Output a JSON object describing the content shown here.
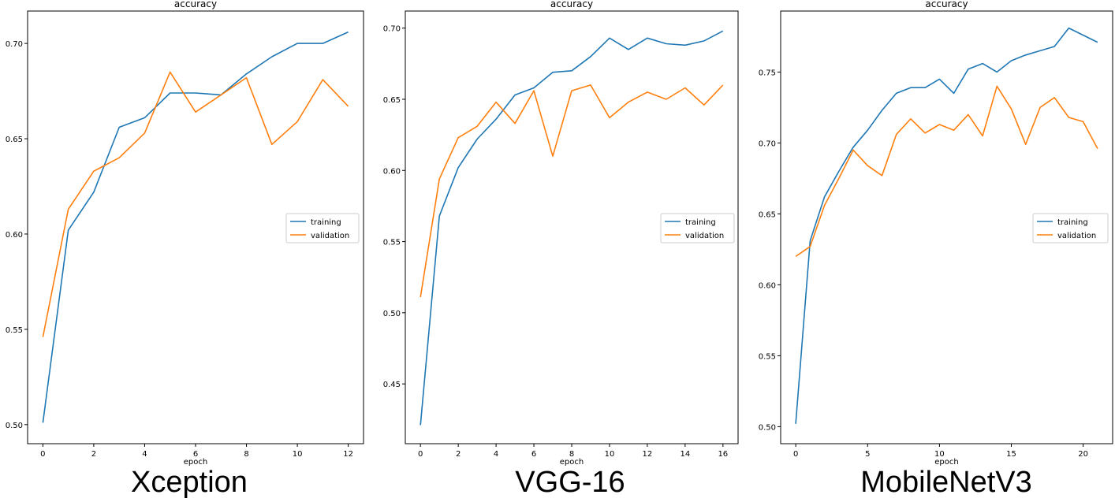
{
  "colors": {
    "training": "#1f77b4",
    "validation": "#ff7f0e"
  },
  "chart_data": [
    {
      "type": "line",
      "title": "accuracy",
      "xlabel": "epoch",
      "ylabel": "",
      "caption": "Xception",
      "xlim": [
        -0.6,
        12.6
      ],
      "ylim": [
        0.49,
        0.717
      ],
      "xticks": [
        0,
        2,
        4,
        6,
        8,
        10,
        12
      ],
      "yticks": [
        0.5,
        0.55,
        0.6,
        0.65,
        0.7
      ],
      "ytick_labels": [
        "0.50",
        "0.55",
        "0.60",
        "0.65",
        "0.70"
      ],
      "legend": {
        "position": "center-right",
        "entries": [
          "training",
          "validation"
        ]
      },
      "x": [
        0,
        1,
        2,
        3,
        4,
        5,
        6,
        7,
        8,
        9,
        10,
        11,
        12
      ],
      "series": [
        {
          "name": "training",
          "values": [
            0.501,
            0.602,
            0.622,
            0.656,
            0.661,
            0.674,
            0.674,
            0.673,
            0.684,
            0.693,
            0.7,
            0.7,
            0.706
          ]
        },
        {
          "name": "validation",
          "values": [
            0.546,
            0.613,
            0.633,
            0.64,
            0.653,
            0.685,
            0.664,
            0.673,
            0.682,
            0.647,
            0.659,
            0.681,
            0.667
          ]
        }
      ]
    },
    {
      "type": "line",
      "title": "accuracy",
      "xlabel": "epoch",
      "ylabel": "",
      "caption": "VGG-16",
      "xlim": [
        -0.8,
        16.8
      ],
      "ylim": [
        0.408,
        0.712
      ],
      "xticks": [
        0,
        2,
        4,
        6,
        8,
        10,
        12,
        14,
        16
      ],
      "yticks": [
        0.45,
        0.5,
        0.55,
        0.6,
        0.65,
        0.7
      ],
      "ytick_labels": [
        "0.45",
        "0.50",
        "0.55",
        "0.60",
        "0.65",
        "0.70"
      ],
      "legend": {
        "position": "center-right",
        "entries": [
          "training",
          "validation"
        ]
      },
      "x": [
        0,
        1,
        2,
        3,
        4,
        5,
        6,
        7,
        8,
        9,
        10,
        11,
        12,
        13,
        14,
        15,
        16
      ],
      "series": [
        {
          "name": "training",
          "values": [
            0.421,
            0.568,
            0.602,
            0.622,
            0.636,
            0.653,
            0.658,
            0.669,
            0.67,
            0.68,
            0.693,
            0.685,
            0.693,
            0.689,
            0.688,
            0.691,
            0.698
          ]
        },
        {
          "name": "validation",
          "values": [
            0.511,
            0.594,
            0.623,
            0.631,
            0.648,
            0.633,
            0.656,
            0.61,
            0.656,
            0.66,
            0.637,
            0.648,
            0.655,
            0.65,
            0.658,
            0.646,
            0.66
          ]
        }
      ]
    },
    {
      "type": "line",
      "title": "accuracy",
      "xlabel": "epoch",
      "ylabel": "",
      "caption": "MobileNetV3",
      "xlim": [
        -1.05,
        22.05
      ],
      "ylim": [
        0.488,
        0.793
      ],
      "xticks": [
        0,
        5,
        10,
        15,
        20
      ],
      "yticks": [
        0.5,
        0.55,
        0.6,
        0.65,
        0.7,
        0.75
      ],
      "ytick_labels": [
        "0.50",
        "0.55",
        "0.60",
        "0.65",
        "0.70",
        "0.75"
      ],
      "legend": {
        "position": "center-right",
        "entries": [
          "training",
          "validation"
        ]
      },
      "x": [
        0,
        1,
        2,
        3,
        4,
        5,
        6,
        7,
        8,
        9,
        10,
        11,
        12,
        13,
        14,
        15,
        16,
        17,
        18,
        19,
        20,
        21
      ],
      "series": [
        {
          "name": "training",
          "values": [
            0.502,
            0.631,
            0.662,
            0.68,
            0.697,
            0.709,
            0.723,
            0.735,
            0.739,
            0.739,
            0.745,
            0.735,
            0.752,
            0.756,
            0.75,
            0.758,
            0.762,
            0.765,
            0.768,
            0.781,
            0.776,
            0.771
          ]
        },
        {
          "name": "validation",
          "values": [
            0.62,
            0.627,
            0.656,
            0.675,
            0.695,
            0.684,
            0.677,
            0.706,
            0.717,
            0.707,
            0.713,
            0.709,
            0.72,
            0.705,
            0.74,
            0.724,
            0.699,
            0.725,
            0.732,
            0.718,
            0.715,
            0.696
          ]
        }
      ]
    }
  ]
}
